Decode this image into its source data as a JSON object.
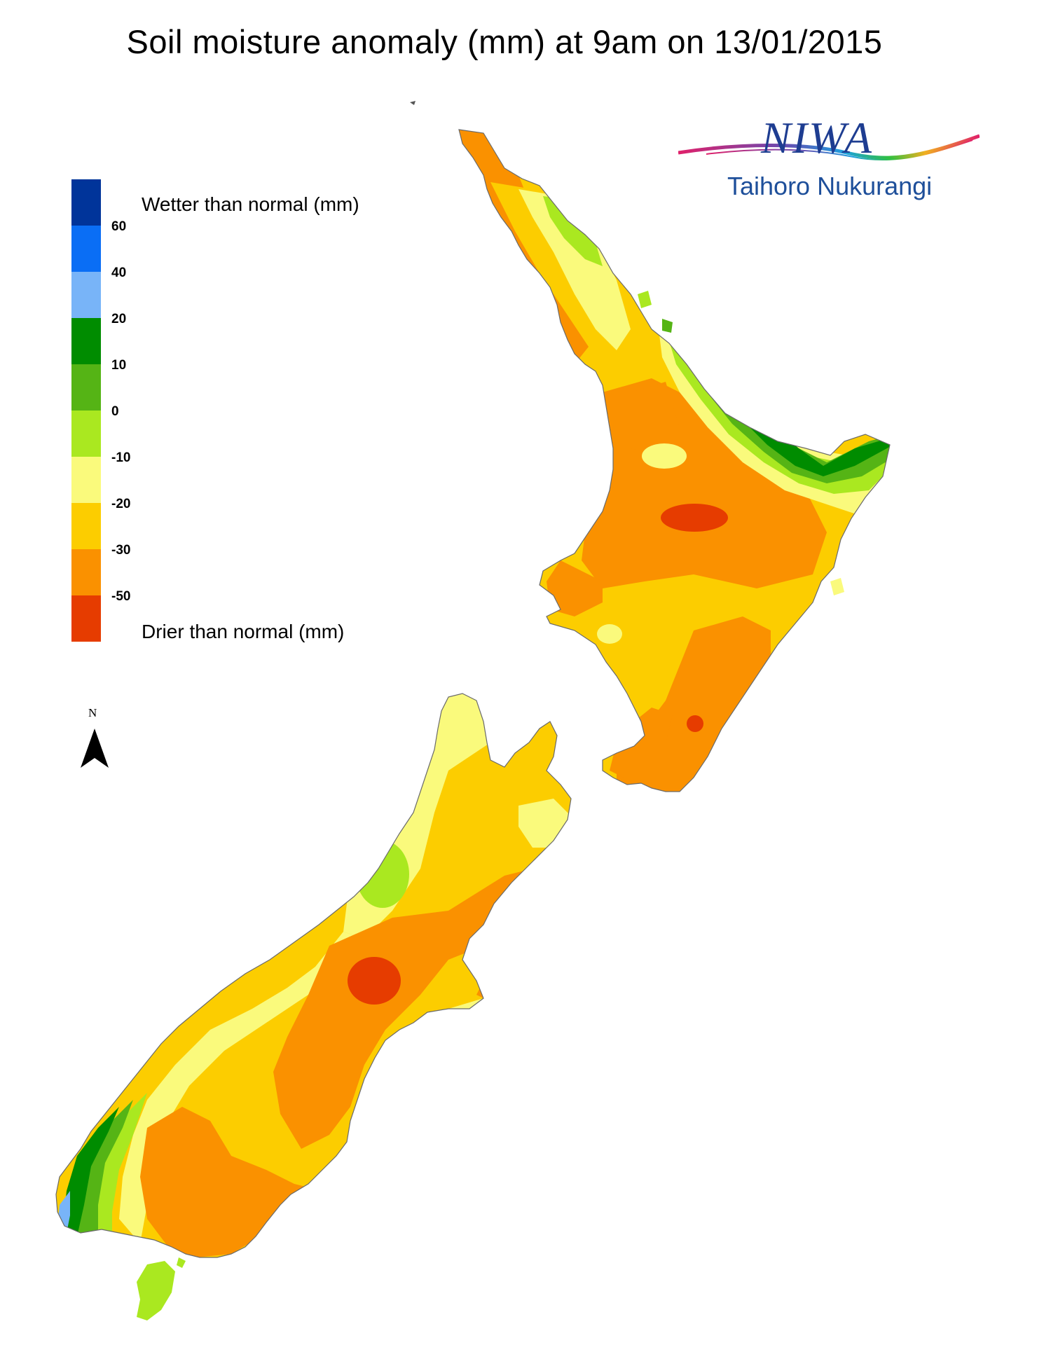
{
  "title": "Soil moisture anomaly (mm) at 9am on 13/01/2015",
  "legend": {
    "upper_label": "Wetter than normal (mm)",
    "lower_label": "Drier than normal (mm)",
    "classes": [
      {
        "color": "#00349a"
      },
      {
        "color": "#0a6ef5"
      },
      {
        "color": "#78b4f8"
      },
      {
        "color": "#008c00"
      },
      {
        "color": "#55b415"
      },
      {
        "color": "#aae820"
      },
      {
        "color": "#fafa7c"
      },
      {
        "color": "#fccd00"
      },
      {
        "color": "#fa9100"
      },
      {
        "color": "#e63c00"
      }
    ],
    "ticks": [
      "60",
      "40",
      "20",
      "10",
      "0",
      "-10",
      "-20",
      "-30",
      "-50"
    ]
  },
  "north_arrow": {
    "letter": "N"
  },
  "logo": {
    "brand": "NIWA",
    "subtitle": "Taihoro Nukurangi"
  }
}
